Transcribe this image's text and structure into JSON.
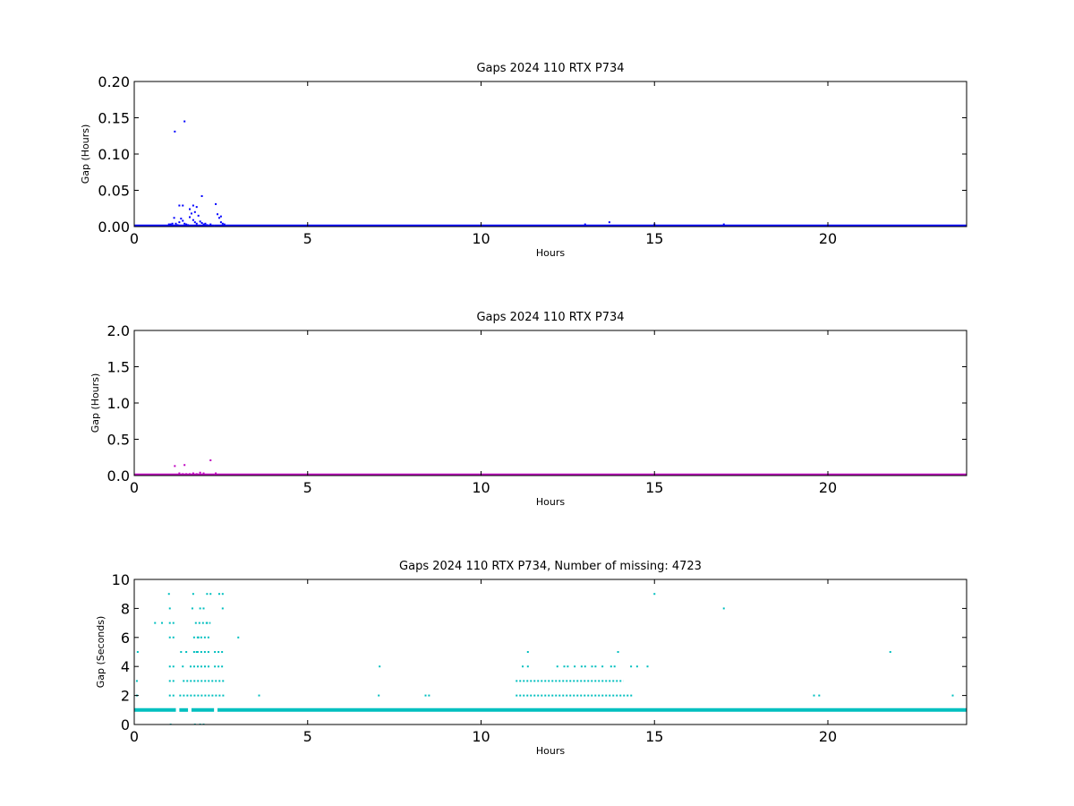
{
  "chart_data": [
    {
      "type": "scatter",
      "title": "Gaps 2024 110 RTX  P734",
      "xlabel": "Hours",
      "ylabel": "Gap (Hours)",
      "xlim": [
        0,
        24
      ],
      "ylim": [
        0,
        0.2
      ],
      "xticks": [
        "0",
        "5",
        "10",
        "15",
        "20"
      ],
      "yticks": [
        "0.00",
        "0.05",
        "0.10",
        "0.15",
        "0.20"
      ],
      "color": "#0000ff",
      "baseline": {
        "value": 0.0003,
        "ranges": [
          [
            0,
            1.2
          ],
          [
            1.2,
            2.3
          ],
          [
            2.3,
            24
          ]
        ]
      },
      "points": [
        [
          1.17,
          0.131
        ],
        [
          1.45,
          0.145
        ],
        [
          1.3,
          0.029
        ],
        [
          1.4,
          0.029
        ],
        [
          1.7,
          0.029
        ],
        [
          1.8,
          0.027
        ],
        [
          1.6,
          0.024
        ],
        [
          1.65,
          0.018
        ],
        [
          1.75,
          0.02
        ],
        [
          1.85,
          0.015
        ],
        [
          1.95,
          0.042
        ],
        [
          2.35,
          0.031
        ],
        [
          1.15,
          0.012
        ],
        [
          1.2,
          0.004
        ],
        [
          1.3,
          0.006
        ],
        [
          1.35,
          0.011
        ],
        [
          1.4,
          0.008
        ],
        [
          1.45,
          0.004
        ],
        [
          1.5,
          0.003
        ],
        [
          1.55,
          0.002
        ],
        [
          1.6,
          0.013
        ],
        [
          1.7,
          0.009
        ],
        [
          1.75,
          0.006
        ],
        [
          1.8,
          0.004
        ],
        [
          1.9,
          0.007
        ],
        [
          1.95,
          0.005
        ],
        [
          2.0,
          0.003
        ],
        [
          2.05,
          0.004
        ],
        [
          2.1,
          0.002
        ],
        [
          2.2,
          0.003
        ],
        [
          2.4,
          0.017
        ],
        [
          2.45,
          0.012
        ],
        [
          2.5,
          0.014
        ],
        [
          2.5,
          0.006
        ],
        [
          2.55,
          0.004
        ],
        [
          2.6,
          0.003
        ],
        [
          1.0,
          0.003
        ],
        [
          1.05,
          0.003
        ],
        [
          1.1,
          0.004
        ],
        [
          1.25,
          0.002
        ],
        [
          13.0,
          0.003
        ],
        [
          13.7,
          0.006
        ],
        [
          15.0,
          0.003
        ],
        [
          17.0,
          0.003
        ]
      ]
    },
    {
      "type": "scatter",
      "title": "Gaps 2024 110 RTX  P734",
      "xlabel": "Hours",
      "ylabel": "Gap (Hours)",
      "xlim": [
        0,
        24
      ],
      "ylim": [
        0,
        2.0
      ],
      "xticks": [
        "0",
        "5",
        "10",
        "15",
        "20"
      ],
      "yticks": [
        "0.0",
        "0.5",
        "1.0",
        "1.5",
        "2.0"
      ],
      "color": "#bf00bf",
      "baseline": {
        "value": 0.003,
        "ranges": [
          [
            0,
            1.2
          ],
          [
            1.2,
            2.3
          ],
          [
            2.3,
            24
          ]
        ]
      },
      "points": [
        [
          1.17,
          0.131
        ],
        [
          1.45,
          0.145
        ],
        [
          2.2,
          0.21
        ],
        [
          1.3,
          0.03
        ],
        [
          1.5,
          0.02
        ],
        [
          1.7,
          0.03
        ],
        [
          1.9,
          0.04
        ],
        [
          2.0,
          0.03
        ],
        [
          2.35,
          0.03
        ],
        [
          1.4,
          0.02
        ],
        [
          1.6,
          0.02
        ],
        [
          1.8,
          0.02
        ]
      ]
    },
    {
      "type": "scatter",
      "title": "Gaps 2024 110 RTX  P734, Number of missing: 4723",
      "xlabel": "Hours",
      "ylabel": "Gap (Seconds)",
      "xlim": [
        0,
        24
      ],
      "ylim": [
        0,
        10
      ],
      "xticks": [
        "0",
        "5",
        "10",
        "15",
        "20"
      ],
      "yticks": [
        "0",
        "2",
        "4",
        "6",
        "8",
        "10"
      ],
      "color": "#00bfbf",
      "baseline": {
        "value": 1,
        "ranges": [
          [
            0,
            1.2
          ],
          [
            1.3,
            1.55
          ],
          [
            1.65,
            2.3
          ],
          [
            2.4,
            24
          ]
        ]
      },
      "level_segments": [
        {
          "y": 2,
          "x": [
            [
              0.05,
              0.15
            ],
            [
              1.0,
              1.2
            ],
            [
              1.3,
              2.6
            ],
            [
              11.0,
              14.4
            ]
          ]
        },
        {
          "y": 3,
          "x": [
            [
              0.05,
              0.15
            ],
            [
              1.0,
              1.2
            ],
            [
              1.4,
              2.6
            ],
            [
              11.0,
              14.1
            ]
          ]
        },
        {
          "y": 4,
          "x": [
            [
              1.0,
              1.2
            ],
            [
              1.6,
              2.2
            ],
            [
              2.3,
              2.6
            ],
            [
              7.05,
              7.15
            ],
            [
              14.3,
              14.4
            ]
          ]
        },
        {
          "y": 5,
          "x": [
            [
              1.7,
              2.2
            ],
            [
              2.3,
              2.6
            ]
          ]
        },
        {
          "y": 6,
          "x": [
            [
              1.0,
              1.2
            ],
            [
              1.7,
              2.2
            ]
          ]
        },
        {
          "y": 7,
          "x": [
            [
              1.0,
              1.2
            ],
            [
              1.75,
              2.2
            ]
          ]
        },
        {
          "y": 8,
          "x": [
            [
              1.0,
              1.1
            ],
            [
              1.65,
              1.75
            ]
          ]
        }
      ],
      "points": [
        [
          0.1,
          5
        ],
        [
          0.6,
          7
        ],
        [
          0.8,
          7
        ],
        [
          1.0,
          9
        ],
        [
          1.7,
          9
        ],
        [
          2.1,
          9
        ],
        [
          2.2,
          9
        ],
        [
          2.45,
          9
        ],
        [
          2.55,
          9
        ],
        [
          1.5,
          5
        ],
        [
          1.35,
          5
        ],
        [
          1.4,
          4
        ],
        [
          1.8,
          5
        ],
        [
          2.0,
          8
        ],
        [
          2.1,
          7
        ],
        [
          2.55,
          8
        ],
        [
          1.85,
          6
        ],
        [
          1.9,
          8
        ],
        [
          3.0,
          6
        ],
        [
          3.6,
          2
        ],
        [
          7.05,
          2
        ],
        [
          8.4,
          2
        ],
        [
          8.5,
          2
        ],
        [
          11.2,
          4
        ],
        [
          11.35,
          4
        ],
        [
          11.35,
          5
        ],
        [
          12.2,
          4
        ],
        [
          12.4,
          4
        ],
        [
          12.5,
          4
        ],
        [
          12.7,
          4
        ],
        [
          12.9,
          4
        ],
        [
          13.0,
          4
        ],
        [
          13.2,
          4
        ],
        [
          13.3,
          4
        ],
        [
          13.5,
          4
        ],
        [
          13.75,
          4
        ],
        [
          13.85,
          4
        ],
        [
          13.95,
          5
        ],
        [
          14.5,
          4
        ],
        [
          14.8,
          4
        ],
        [
          15.0,
          9
        ],
        [
          17.0,
          8
        ],
        [
          19.6,
          2
        ],
        [
          19.75,
          2
        ],
        [
          21.8,
          5
        ],
        [
          23.6,
          2
        ],
        [
          1.05,
          0
        ],
        [
          1.75,
          0
        ],
        [
          1.9,
          0
        ],
        [
          2.0,
          0
        ]
      ]
    }
  ]
}
